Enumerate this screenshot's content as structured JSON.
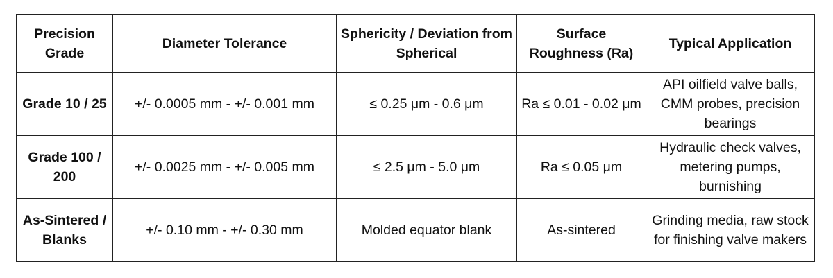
{
  "table": {
    "header": [
      "Precision Grade",
      "Diameter Tolerance",
      "Sphericity / Deviation from Spherical",
      "Surface Roughness (Ra)",
      "Typical Application"
    ],
    "rows": [
      [
        "Grade 10 / 25",
        "+/- 0.0005 mm - +/- 0.001 mm",
        "≤ 0.25 μm - 0.6 μm",
        "Ra ≤ 0.01 - 0.02 μm",
        "API oilfield valve balls, CMM probes, precision bearings"
      ],
      [
        "Grade 100 / 200",
        "+/- 0.0025 mm - +/- 0.005 mm",
        "≤ 2.5 μm - 5.0 μm",
        "Ra ≤ 0.05 μm",
        "Hydraulic check valves, metering pumps, burnishing"
      ],
      [
        "As-Sintered / Blanks",
        "+/- 0.10 mm - +/- 0.30 mm",
        "Molded equator blank",
        "As-sintered",
        "Grinding media, raw stock for finishing valve makers"
      ]
    ]
  }
}
